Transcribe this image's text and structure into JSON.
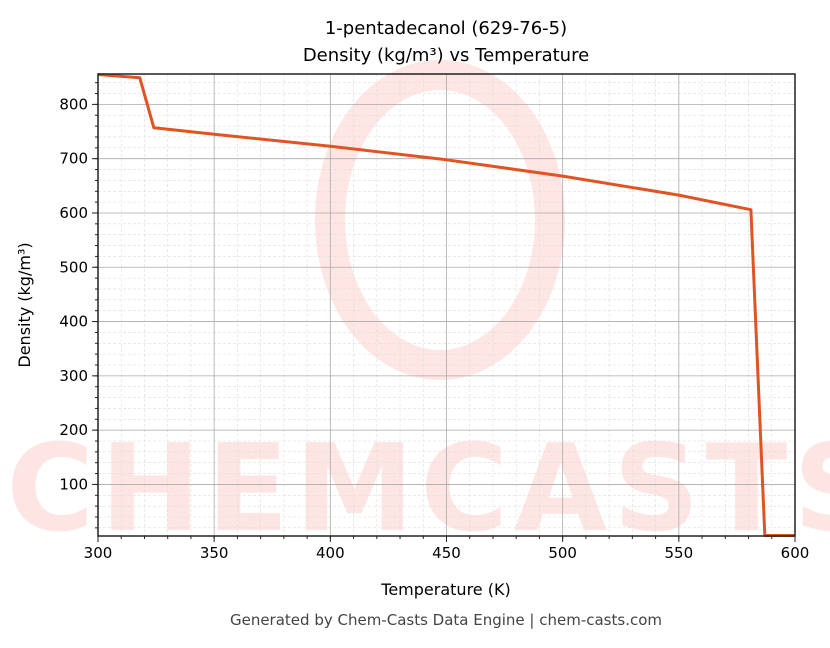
{
  "chart_data": {
    "type": "line",
    "title": "1-pentadecanol (629-76-5)",
    "subtitle": "Density (kg/m³) vs Temperature",
    "xlabel": "Temperature (K)",
    "ylabel": "Density (kg/m³)",
    "xlim": [
      300,
      600
    ],
    "ylim": [
      5,
      856
    ],
    "xticks": [
      300,
      350,
      400,
      450,
      500,
      550,
      600
    ],
    "yticks": [
      100,
      200,
      300,
      400,
      500,
      600,
      700,
      800
    ],
    "grid": true,
    "line_color": "#e05424",
    "x": [
      300,
      318,
      324,
      350,
      400,
      450,
      500,
      550,
      581,
      587,
      600
    ],
    "y": [
      855,
      849,
      757,
      745,
      723,
      698,
      668,
      633,
      606,
      6,
      6
    ]
  },
  "watermark": "CHEMCASTS",
  "footer": "Generated by Chem-Casts Data Engine | chem-casts.com"
}
